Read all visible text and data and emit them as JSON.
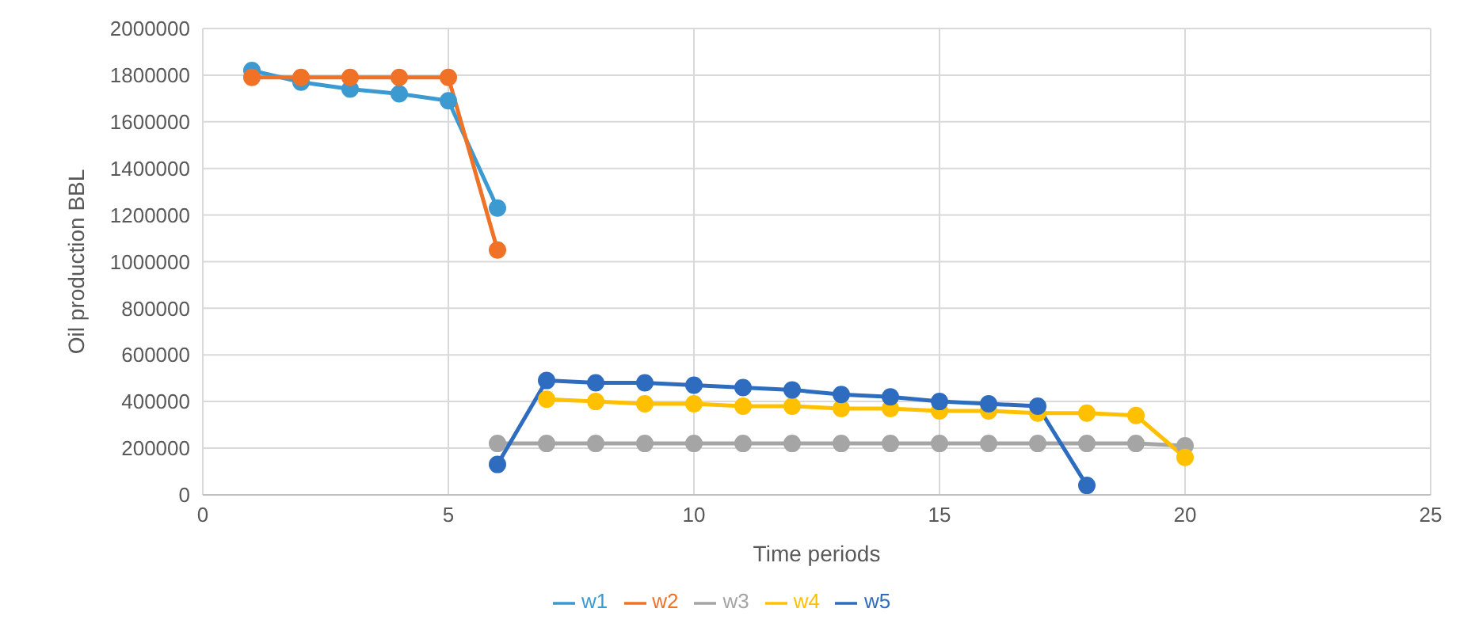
{
  "chart_data": {
    "type": "line",
    "xlabel": "Time periods",
    "ylabel": "Oil    production BBL",
    "xlim": [
      0,
      25
    ],
    "xticks": [
      0,
      5,
      10,
      15,
      20,
      25
    ],
    "ylim": [
      0,
      2000000
    ],
    "yticks": [
      0,
      200000,
      400000,
      600000,
      800000,
      1000000,
      1200000,
      1400000,
      1600000,
      1800000,
      2000000
    ],
    "grid": true,
    "legend": "bottom",
    "marker": "circle",
    "series": [
      {
        "name": "w1",
        "color": "#3d9ad1",
        "x": [
          1,
          2,
          3,
          4,
          5,
          6
        ],
        "values": [
          1820000,
          1770000,
          1740000,
          1720000,
          1690000,
          1230000
        ]
      },
      {
        "name": "w2",
        "color": "#f07227",
        "x": [
          1,
          2,
          3,
          4,
          5,
          6
        ],
        "values": [
          1790000,
          1790000,
          1790000,
          1790000,
          1790000,
          1050000
        ]
      },
      {
        "name": "w3",
        "color": "#a5a5a5",
        "x": [
          6,
          7,
          8,
          9,
          10,
          11,
          12,
          13,
          14,
          15,
          16,
          17,
          18,
          19,
          20
        ],
        "values": [
          220000,
          220000,
          220000,
          220000,
          220000,
          220000,
          220000,
          220000,
          220000,
          220000,
          220000,
          220000,
          220000,
          220000,
          210000
        ]
      },
      {
        "name": "w4",
        "color": "#ffc000",
        "x": [
          7,
          8,
          9,
          10,
          11,
          12,
          13,
          14,
          15,
          16,
          17,
          18,
          19,
          20
        ],
        "values": [
          410000,
          400000,
          390000,
          390000,
          380000,
          380000,
          370000,
          370000,
          360000,
          360000,
          350000,
          350000,
          340000,
          160000
        ]
      },
      {
        "name": "w5",
        "color": "#2e6cc0",
        "x": [
          6,
          7,
          8,
          9,
          10,
          11,
          12,
          13,
          14,
          15,
          16,
          17,
          18
        ],
        "values": [
          130000,
          490000,
          480000,
          480000,
          470000,
          460000,
          450000,
          430000,
          420000,
          400000,
          390000,
          380000,
          40000
        ]
      }
    ]
  }
}
